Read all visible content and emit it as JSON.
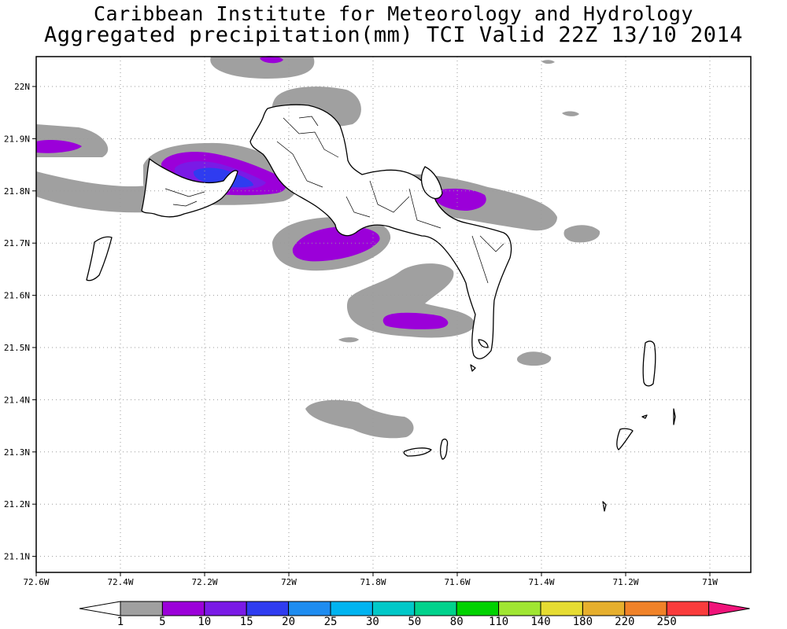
{
  "header": {
    "title_line1": "Caribbean Institute for Meteorology and Hydrology",
    "title_line2": "Aggregated precipitation(mm) TCI Valid 22Z 13/10 2014"
  },
  "map": {
    "region": "Turks and Caicos Islands",
    "lon_range": [
      -72.6,
      -71.0
    ],
    "lat_range": [
      21.05,
      22.05
    ],
    "grid": "dotted",
    "lon_ticks": [
      {
        "value": -72.6,
        "label": "72.6W"
      },
      {
        "value": -72.4,
        "label": "72.4W"
      },
      {
        "value": -72.2,
        "label": "72.2W"
      },
      {
        "value": -72.0,
        "label": "72W"
      },
      {
        "value": -71.8,
        "label": "71.8W"
      },
      {
        "value": -71.6,
        "label": "71.6W"
      },
      {
        "value": -71.4,
        "label": "71.4W"
      },
      {
        "value": -71.2,
        "label": "71.2W"
      },
      {
        "value": -71.0,
        "label": "71W"
      }
    ],
    "lat_ticks": [
      {
        "value": 22.0,
        "label": "22N"
      },
      {
        "value": 21.9,
        "label": "21.9N"
      },
      {
        "value": 21.8,
        "label": "21.8N"
      },
      {
        "value": 21.7,
        "label": "21.7N"
      },
      {
        "value": 21.6,
        "label": "21.6N"
      },
      {
        "value": 21.5,
        "label": "21.5N"
      },
      {
        "value": 21.4,
        "label": "21.4N"
      },
      {
        "value": 21.3,
        "label": "21.3N"
      },
      {
        "value": 21.2,
        "label": "21.2N"
      },
      {
        "value": 21.1,
        "label": "21.1N"
      }
    ]
  },
  "legend": {
    "bins": [
      {
        "label": "1",
        "color": "#a0a0a0"
      },
      {
        "label": "5",
        "color": "#9b00d9"
      },
      {
        "label": "10",
        "color": "#7a1ae6"
      },
      {
        "label": "15",
        "color": "#2f3cf0"
      },
      {
        "label": "20",
        "color": "#1e8cf0"
      },
      {
        "label": "25",
        "color": "#00b4f0"
      },
      {
        "label": "30",
        "color": "#00c8c8"
      },
      {
        "label": "50",
        "color": "#00d28c"
      },
      {
        "label": "80",
        "color": "#00d200"
      },
      {
        "label": "110",
        "color": "#a0e632"
      },
      {
        "label": "140",
        "color": "#e6dc32"
      },
      {
        "label": "180",
        "color": "#e6af2d"
      },
      {
        "label": "220",
        "color": "#f08228"
      },
      {
        "label": "250",
        "color": "#fa3c3c"
      }
    ],
    "over_color": "#f0147a"
  }
}
